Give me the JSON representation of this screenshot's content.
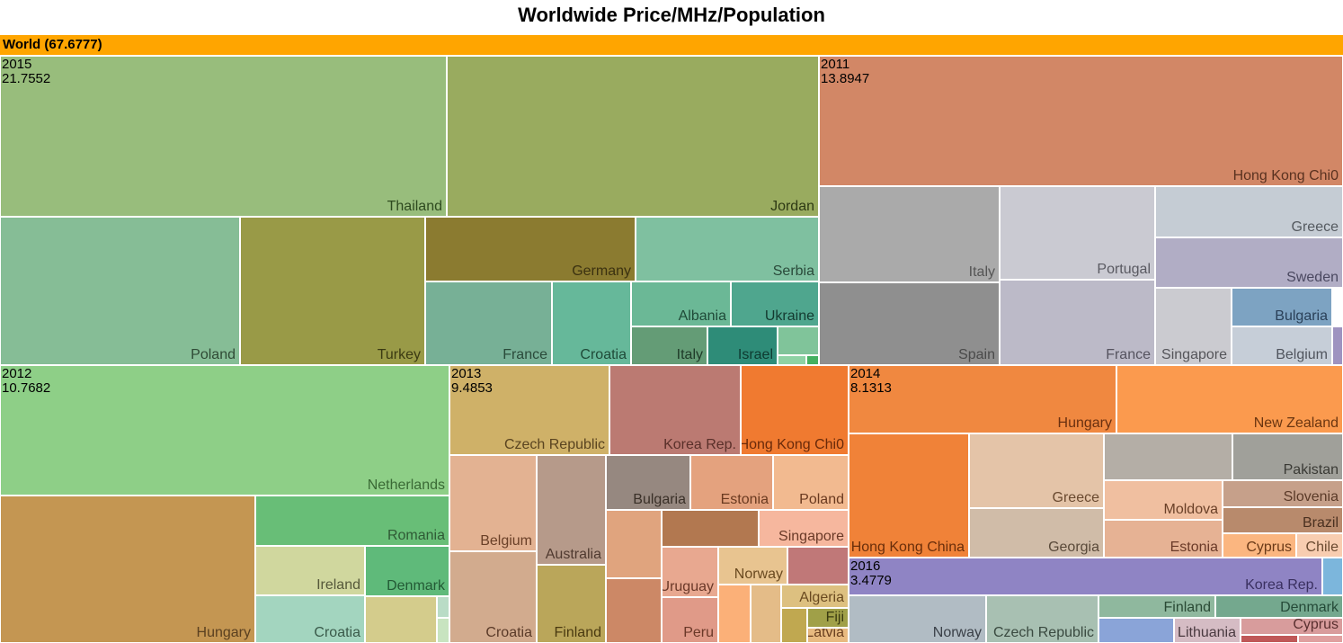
{
  "chart_data": {
    "type": "treemap",
    "title": "Worldwide Price/MHz/Population",
    "root": {
      "label": "World (67.6777)",
      "color": "#ffa500"
    },
    "groups": [
      {
        "name": "2015",
        "value": "21.7552",
        "children": [
          {
            "name": "Thailand",
            "color": "#98bd7c",
            "text": "#2e4a1f"
          },
          {
            "name": "Jordan",
            "color": "#99ab5f",
            "text": "#2e3a14"
          },
          {
            "name": "Poland",
            "color": "#86bd96",
            "text": "#2f4a35"
          },
          {
            "name": "Turkey",
            "color": "#999a47",
            "text": "#3b3a12"
          },
          {
            "name": "Germany",
            "color": "#8b7b30",
            "text": "#3b3110"
          },
          {
            "name": "Serbia",
            "color": "#7fc0a0",
            "text": "#2a4a3a"
          },
          {
            "name": "France",
            "color": "#77b096",
            "text": "#2a4a3a"
          },
          {
            "name": "Croatia",
            "color": "#66b89a",
            "text": "#1f4a38"
          },
          {
            "name": "Albania",
            "color": "#6bb896",
            "text": "#1f4a38"
          },
          {
            "name": "Ukraine",
            "color": "#4fa68e",
            "text": "#143a30"
          },
          {
            "name": "Italy",
            "color": "#649c76",
            "text": "#1f3a28"
          },
          {
            "name": "Israel",
            "color": "#2e8c78",
            "text": "#0e3a30"
          },
          {
            "name": "",
            "color": "#80c49a",
            "text": "#000"
          },
          {
            "name": "",
            "color": "#8ed2a4",
            "text": "#000"
          },
          {
            "name": "",
            "color": "#44b060",
            "text": "#000"
          }
        ]
      },
      {
        "name": "2011",
        "value": "13.8947",
        "children": [
          {
            "name": "Hong Kong Chi0",
            "color": "#d28766",
            "text": "#5a3220"
          },
          {
            "name": "Italy",
            "color": "#aaaaaa",
            "text": "#555555"
          },
          {
            "name": "Spain",
            "color": "#8f8f8f",
            "text": "#4a4a4a"
          },
          {
            "name": "Portugal",
            "color": "#cacad2",
            "text": "#5a5a62"
          },
          {
            "name": "France",
            "color": "#bcbac8",
            "text": "#55535f"
          },
          {
            "name": "Greece",
            "color": "#c5ccd4",
            "text": "#555a60"
          },
          {
            "name": "Sweden",
            "color": "#b1adc5",
            "text": "#4a4860"
          },
          {
            "name": "Singapore",
            "color": "#cbcbd0",
            "text": "#55555a"
          },
          {
            "name": "Bulgaria",
            "color": "#7da3c2",
            "text": "#2a4058"
          },
          {
            "name": "Belgium",
            "color": "#c6ced8",
            "text": "#50555e"
          },
          {
            "name": "",
            "color": "#9e93c0",
            "text": "#000"
          }
        ]
      },
      {
        "name": "2012",
        "value": "10.7682",
        "children": [
          {
            "name": "Netherlands",
            "color": "#8ecf87",
            "text": "#3a6a35"
          },
          {
            "name": "Hungary",
            "color": "#c49652",
            "text": "#5a4020"
          },
          {
            "name": "Romania",
            "color": "#68be77",
            "text": "#2f5a35"
          },
          {
            "name": "Ireland",
            "color": "#d0d79e",
            "text": "#55583a"
          },
          {
            "name": "Denmark",
            "color": "#5fba7a",
            "text": "#235a35"
          },
          {
            "name": "Croatia",
            "color": "#a3d5bf",
            "text": "#3a5a4a"
          },
          {
            "name": "",
            "color": "#d4cc8c",
            "text": "#000"
          },
          {
            "name": "",
            "color": "#b9dcc6",
            "text": "#000"
          },
          {
            "name": "",
            "color": "#c8e4c0",
            "text": "#000"
          }
        ]
      },
      {
        "name": "2013",
        "value": "9.4853",
        "children": [
          {
            "name": "Czech Republic",
            "color": "#cfb168",
            "text": "#5a4420"
          },
          {
            "name": "Korea Rep.",
            "color": "#bb7a72",
            "text": "#5a302a"
          },
          {
            "name": "Hong Kong Chi0",
            "color": "#f07a30",
            "text": "#6a2a0a"
          },
          {
            "name": "Belgium",
            "color": "#e3b292",
            "text": "#6a4028"
          },
          {
            "name": "Australia",
            "color": "#b69a8a",
            "text": "#503a30"
          },
          {
            "name": "Bulgaria",
            "color": "#968880",
            "text": "#3a3028"
          },
          {
            "name": "Estonia",
            "color": "#e4a27e",
            "text": "#6a3a20"
          },
          {
            "name": "Poland",
            "color": "#f2ba90",
            "text": "#6a3a20"
          },
          {
            "name": "Singapore",
            "color": "#f6b79e",
            "text": "#6a3a28"
          },
          {
            "name": "Croatia",
            "color": "#d2ab8e",
            "text": "#5a3a28"
          },
          {
            "name": "Finland",
            "color": "#baa65a",
            "text": "#4a3a10"
          },
          {
            "name": "Uruguay",
            "color": "#e8a890",
            "text": "#6a3828"
          },
          {
            "name": "Norway",
            "color": "#e8c490",
            "text": "#6a4a20"
          },
          {
            "name": "Peru",
            "color": "#e09a88",
            "text": "#6a3828"
          },
          {
            "name": "Algeria",
            "color": "#ddc080",
            "text": "#6a4a20"
          },
          {
            "name": "Fiji",
            "color": "#a0a048",
            "text": "#3a3a10"
          },
          {
            "name": "Latvia",
            "color": "#e8ba80",
            "text": "#6a4020"
          },
          {
            "name": "",
            "color": "#e0a47e",
            "text": "#000"
          },
          {
            "name": "",
            "color": "#b27850",
            "text": "#000"
          },
          {
            "name": "",
            "color": "#cc8866",
            "text": "#000"
          },
          {
            "name": "",
            "color": "#c07878",
            "text": "#000"
          },
          {
            "name": "",
            "color": "#fbb078",
            "text": "#000"
          },
          {
            "name": "",
            "color": "#e4bc88",
            "text": "#000"
          },
          {
            "name": "",
            "color": "#c0a850",
            "text": "#000"
          }
        ]
      },
      {
        "name": "2014",
        "value": "8.1313",
        "children": [
          {
            "name": "Hungary",
            "color": "#f08840",
            "text": "#6a3010"
          },
          {
            "name": "New Zealand",
            "color": "#fb9a4e",
            "text": "#6a3510"
          },
          {
            "name": "Hong Kong China",
            "color": "#f08238",
            "text": "#6a2e0a"
          },
          {
            "name": "Greece",
            "color": "#e4c4a8",
            "text": "#6a4a30"
          },
          {
            "name": "Georgia",
            "color": "#d0bca8",
            "text": "#5a4a3a"
          },
          {
            "name": "Pakistan",
            "color": "#a0a09a",
            "text": "#3a3a35"
          },
          {
            "name": "Moldova",
            "color": "#f0bfa0",
            "text": "#6a4028"
          },
          {
            "name": "Estonia",
            "color": "#e6b294",
            "text": "#6a3a28"
          },
          {
            "name": "Slovenia",
            "color": "#c6a08a",
            "text": "#5a3a28"
          },
          {
            "name": "Brazil",
            "color": "#b88a6c",
            "text": "#4a3020"
          },
          {
            "name": "Cyprus",
            "color": "#fbb680",
            "text": "#6a3a18"
          },
          {
            "name": "Chile",
            "color": "#f8cdb0",
            "text": "#6a4a30"
          },
          {
            "name": "",
            "color": "#b4aea6",
            "text": "#000"
          }
        ]
      },
      {
        "name": "2016",
        "value": "3.4779",
        "children": [
          {
            "name": "Korea Rep.",
            "color": "#8f84c4",
            "text": "#3a3060"
          },
          {
            "name": "Norway",
            "color": "#b1bcc4",
            "text": "#3a4048"
          },
          {
            "name": "Czech Republic",
            "color": "#a8c0b2",
            "text": "#3a4a40"
          },
          {
            "name": "Finland",
            "color": "#8fb89e",
            "text": "#2a4a35"
          },
          {
            "name": "Denmark",
            "color": "#74a88e",
            "text": "#254a38"
          },
          {
            "name": "Lithuania",
            "color": "#d5bcc4",
            "text": "#4a3a40"
          },
          {
            "name": "Cyprus",
            "color": "#d89c9c",
            "text": "#5a3030"
          },
          {
            "name": "",
            "color": "#8aa4d8",
            "text": "#000"
          },
          {
            "name": "",
            "color": "#c05858",
            "text": "#000"
          },
          {
            "name": "",
            "color": "#e0a0a0",
            "text": "#000"
          },
          {
            "name": "",
            "color": "#7cb6dc",
            "text": "#000"
          }
        ]
      }
    ]
  }
}
